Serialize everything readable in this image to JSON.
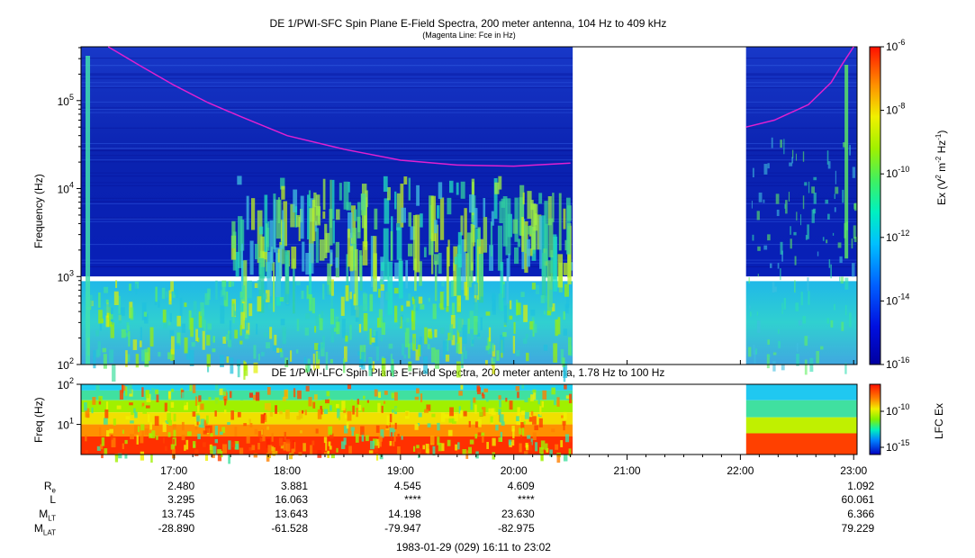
{
  "top_title": "DE 1/PWI-SFC  Spin Plane E-Field Spectra, 200 meter antenna, 104 Hz to 409 kHz",
  "top_subtitle": "(Magenta Line: Fce in Hz)",
  "bottom_title": "DE 1/PWI-LFC  Spin Plane E-Field Spectra, 200 meter antenna, 1.78 Hz to 100 Hz",
  "date_range": "1983-01-29 (029) 16:11 to 23:02",
  "colors": {
    "fce_line": "#e020d0",
    "background_blue": "#1030c0",
    "gap": "#ffffff"
  },
  "chart_data": [
    {
      "type": "heatmap",
      "name": "SFC spectrogram",
      "ylabel": "Frequency (Hz)",
      "yscale": "log",
      "ylim": [
        100,
        409000
      ],
      "ytick_labels": [
        "10^2",
        "10^3",
        "10^4",
        "10^5"
      ],
      "xlim_hours": [
        16.18,
        23.03
      ],
      "data_gap_hours": [
        20.52,
        22.05
      ],
      "colorbar": {
        "label": "Ex (V^2 m^-2 Hz^-1)",
        "scale": "log",
        "range": [
          1e-16,
          1e-06
        ],
        "tick_labels": [
          "10^-6",
          "10^-8",
          "10^-10",
          "10^-12",
          "10^-14",
          "10^-16"
        ]
      },
      "fce_line_hours": [
        16.42,
        16.7,
        17.0,
        17.3,
        17.6,
        18.0,
        18.5,
        19.0,
        19.5,
        20.0,
        20.5
      ],
      "fce_line_hz": [
        409000,
        250000,
        150000,
        95000,
        65000,
        40000,
        28000,
        21000,
        18500,
        18000,
        19500
      ],
      "fce_line2_hours": [
        22.05,
        22.3,
        22.6,
        22.8,
        22.9,
        23.0
      ],
      "fce_line2_hz": [
        50000,
        60000,
        90000,
        160000,
        260000,
        409000
      ]
    },
    {
      "type": "heatmap",
      "name": "LFC spectrogram",
      "ylabel": "Freq (Hz)",
      "yscale": "log",
      "ylim": [
        1.78,
        100
      ],
      "ytick_labels": [
        "10^1",
        "10^2"
      ],
      "xlim_hours": [
        16.18,
        23.03
      ],
      "data_gap_hours": [
        20.52,
        22.05
      ],
      "colorbar": {
        "label": "LFC Ex",
        "scale": "log",
        "tick_labels": [
          "10^-10",
          "10^-15"
        ]
      }
    }
  ],
  "time_axis": {
    "tick_labels": [
      "17:00",
      "18:00",
      "19:00",
      "20:00",
      "21:00",
      "22:00",
      "23:00"
    ],
    "tick_hours": [
      17,
      18,
      19,
      20,
      21,
      22,
      23
    ]
  },
  "ephemeris": {
    "rows": [
      {
        "label": "R",
        "sub": "e",
        "values": [
          "2.480",
          "3.881",
          "4.545",
          "4.609",
          "",
          "",
          "1.092"
        ]
      },
      {
        "label": "L",
        "sub": "",
        "values": [
          "3.295",
          "16.063",
          "****",
          "****",
          "",
          "",
          "60.061"
        ]
      },
      {
        "label": "M",
        "sub": "LT",
        "values": [
          "13.745",
          "13.643",
          "14.198",
          "23.630",
          "",
          "",
          "6.366"
        ]
      },
      {
        "label": "M",
        "sub": "LAT",
        "values": [
          "-28.890",
          "-61.528",
          "-79.947",
          "-82.975",
          "",
          "",
          "79.229"
        ]
      }
    ]
  }
}
